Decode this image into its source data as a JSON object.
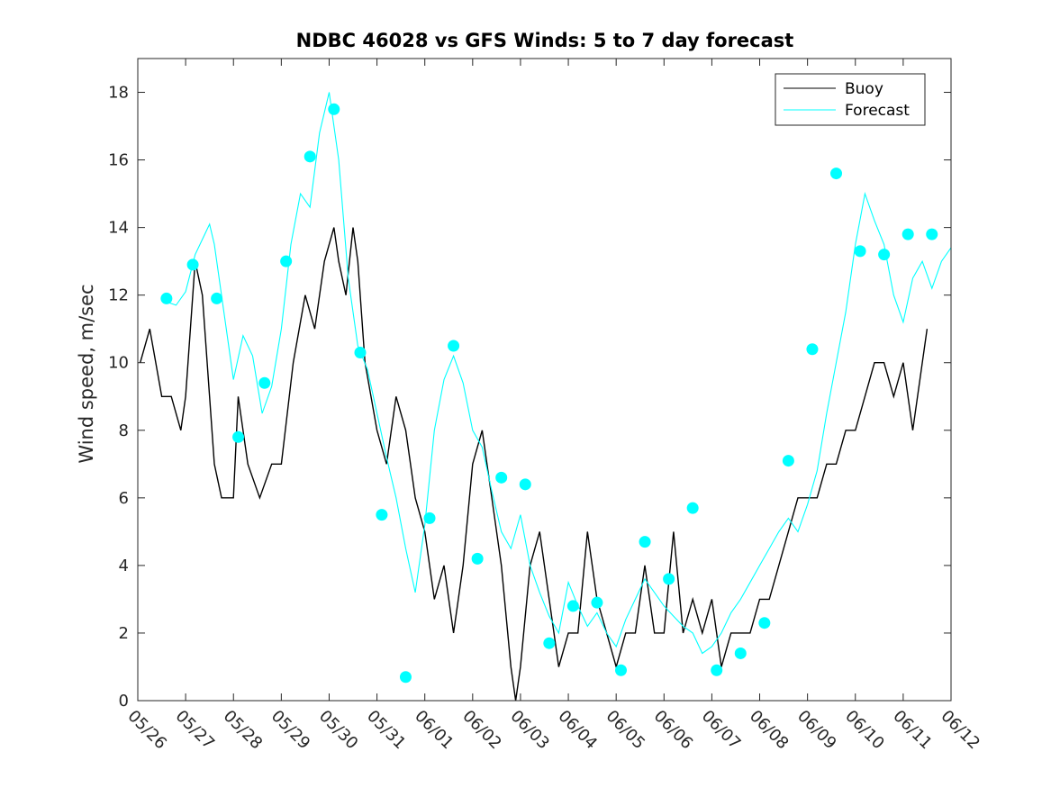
{
  "chart_data": {
    "type": "line",
    "title": "NDBC 46028 vs GFS Winds: 5 to 7 day forecast",
    "ylabel": "Wind speed, m/sec",
    "xlabel": "",
    "x_tick_labels": [
      "05/26",
      "05/27",
      "05/28",
      "05/29",
      "05/30",
      "05/31",
      "06/01",
      "06/02",
      "06/03",
      "06/04",
      "06/05",
      "06/06",
      "06/07",
      "06/08",
      "06/09",
      "06/10",
      "06/11",
      "06/12"
    ],
    "xlim": [
      0,
      17
    ],
    "ylim": [
      0,
      19
    ],
    "y_ticks": [
      0,
      2,
      4,
      6,
      8,
      10,
      12,
      14,
      16,
      18
    ],
    "x_unit": "days since 05/26",
    "legend_position": "top-right",
    "colors": {
      "buoy": "#000000",
      "forecast": "#00ffff",
      "markers": "#00ffff"
    },
    "legend": [
      {
        "name": "Buoy",
        "color": "#000000",
        "style": "line"
      },
      {
        "name": "Forecast",
        "color": "#00ffff",
        "style": "line"
      }
    ],
    "series": [
      {
        "name": "Buoy",
        "color": "#000000",
        "x": [
          0.05,
          0.25,
          0.5,
          0.7,
          0.9,
          1.0,
          1.2,
          1.35,
          1.5,
          1.6,
          1.75,
          2.0,
          2.1,
          2.3,
          2.55,
          2.8,
          3.0,
          3.25,
          3.5,
          3.7,
          3.9,
          4.1,
          4.2,
          4.35,
          4.5,
          4.6,
          4.75,
          5.0,
          5.2,
          5.4,
          5.6,
          5.8,
          6.0,
          6.2,
          6.4,
          6.6,
          6.8,
          7.0,
          7.2,
          7.4,
          7.6,
          7.8,
          7.9,
          8.0,
          8.2,
          8.4,
          8.6,
          8.8,
          9.0,
          9.2,
          9.4,
          9.6,
          9.8,
          10.0,
          10.2,
          10.4,
          10.6,
          10.8,
          11.0,
          11.2,
          11.4,
          11.6,
          11.8,
          12.0,
          12.2,
          12.4,
          12.6,
          12.8,
          13.0,
          13.2,
          13.4,
          13.6,
          13.8,
          14.0,
          14.2,
          14.4,
          14.6,
          14.8,
          15.0,
          15.2,
          15.4,
          15.6,
          15.8,
          16.0,
          16.2,
          16.4,
          16.5
        ],
        "y": [
          10,
          11,
          9,
          9,
          8,
          9,
          13,
          12,
          9,
          7,
          6,
          6,
          9,
          7,
          6,
          7,
          7,
          10,
          12,
          11,
          13,
          14,
          13,
          12,
          14,
          13,
          10,
          8,
          7,
          9,
          8,
          6,
          5,
          3,
          4,
          2,
          4,
          7,
          8,
          6,
          4,
          1,
          0,
          1,
          4,
          5,
          3,
          1,
          2,
          2,
          5,
          3,
          2,
          1,
          2,
          2,
          4,
          2,
          2,
          5,
          2,
          3,
          2,
          3,
          1,
          2,
          2,
          2,
          3,
          3,
          4,
          5,
          6,
          6,
          6,
          7,
          7,
          8,
          8,
          9,
          10,
          10,
          9,
          10,
          8,
          10,
          11
        ]
      },
      {
        "name": "Forecast",
        "color": "#00ffff",
        "x": [
          0.6,
          0.8,
          1.0,
          1.2,
          1.4,
          1.5,
          1.6,
          1.8,
          2.0,
          2.2,
          2.4,
          2.6,
          2.8,
          3.0,
          3.2,
          3.4,
          3.6,
          3.8,
          4.0,
          4.2,
          4.4,
          4.6,
          4.8,
          5.0,
          5.2,
          5.4,
          5.6,
          5.8,
          6.0,
          6.2,
          6.4,
          6.6,
          6.8,
          7.0,
          7.2,
          7.4,
          7.6,
          7.8,
          8.0,
          8.2,
          8.4,
          8.6,
          8.8,
          9.0,
          9.2,
          9.4,
          9.6,
          9.8,
          10.0,
          10.2,
          10.4,
          10.6,
          10.8,
          11.0,
          11.2,
          11.4,
          11.6,
          11.8,
          12.0,
          12.2,
          12.4,
          12.6,
          12.8,
          13.0,
          13.2,
          13.4,
          13.6,
          13.8,
          14.0,
          14.2,
          14.4,
          14.6,
          14.8,
          15.0,
          15.2,
          15.4,
          15.6,
          15.8,
          16.0,
          16.2,
          16.4,
          16.6,
          16.8,
          17.0
        ],
        "y": [
          11.8,
          11.7,
          12.1,
          13.2,
          13.8,
          14.1,
          13.5,
          11.5,
          9.5,
          10.8,
          10.2,
          8.5,
          9.3,
          11.0,
          13.5,
          15.0,
          14.6,
          16.8,
          18.0,
          16.0,
          12.5,
          10.5,
          9.8,
          8.5,
          7.2,
          6.0,
          4.5,
          3.2,
          5.2,
          8.0,
          9.5,
          10.2,
          9.4,
          8.0,
          7.5,
          6.2,
          5.0,
          4.5,
          5.5,
          4.0,
          3.2,
          2.5,
          2.0,
          3.5,
          2.8,
          2.2,
          2.6,
          2.0,
          1.6,
          2.4,
          3.0,
          3.6,
          3.2,
          2.8,
          2.5,
          2.2,
          2.0,
          1.4,
          1.6,
          2.0,
          2.6,
          3.0,
          3.5,
          4.0,
          4.5,
          5.0,
          5.4,
          5.0,
          5.8,
          6.8,
          8.5,
          10.0,
          11.5,
          13.5,
          15.0,
          14.2,
          13.5,
          12.0,
          11.2,
          12.5,
          13.0,
          12.2,
          13.0,
          13.4
        ]
      }
    ],
    "markers": {
      "color": "#00ffff",
      "x": [
        0.6,
        1.15,
        1.65,
        2.1,
        2.65,
        3.1,
        3.6,
        4.1,
        4.65,
        5.1,
        5.6,
        6.1,
        6.6,
        7.1,
        7.6,
        8.1,
        8.6,
        9.1,
        9.6,
        10.1,
        10.6,
        11.1,
        11.6,
        12.1,
        12.6,
        13.1,
        13.6,
        14.1,
        14.6,
        15.1,
        15.6,
        16.1,
        16.6
      ],
      "y": [
        11.9,
        12.9,
        11.9,
        7.8,
        9.4,
        13.0,
        16.1,
        17.5,
        10.3,
        5.5,
        0.7,
        5.4,
        10.5,
        4.2,
        6.6,
        6.4,
        1.7,
        2.8,
        2.9,
        0.9,
        4.7,
        3.6,
        5.7,
        0.9,
        1.4,
        2.3,
        7.1,
        10.4,
        15.6,
        13.3,
        13.2,
        13.8,
        13.8
      ]
    }
  }
}
